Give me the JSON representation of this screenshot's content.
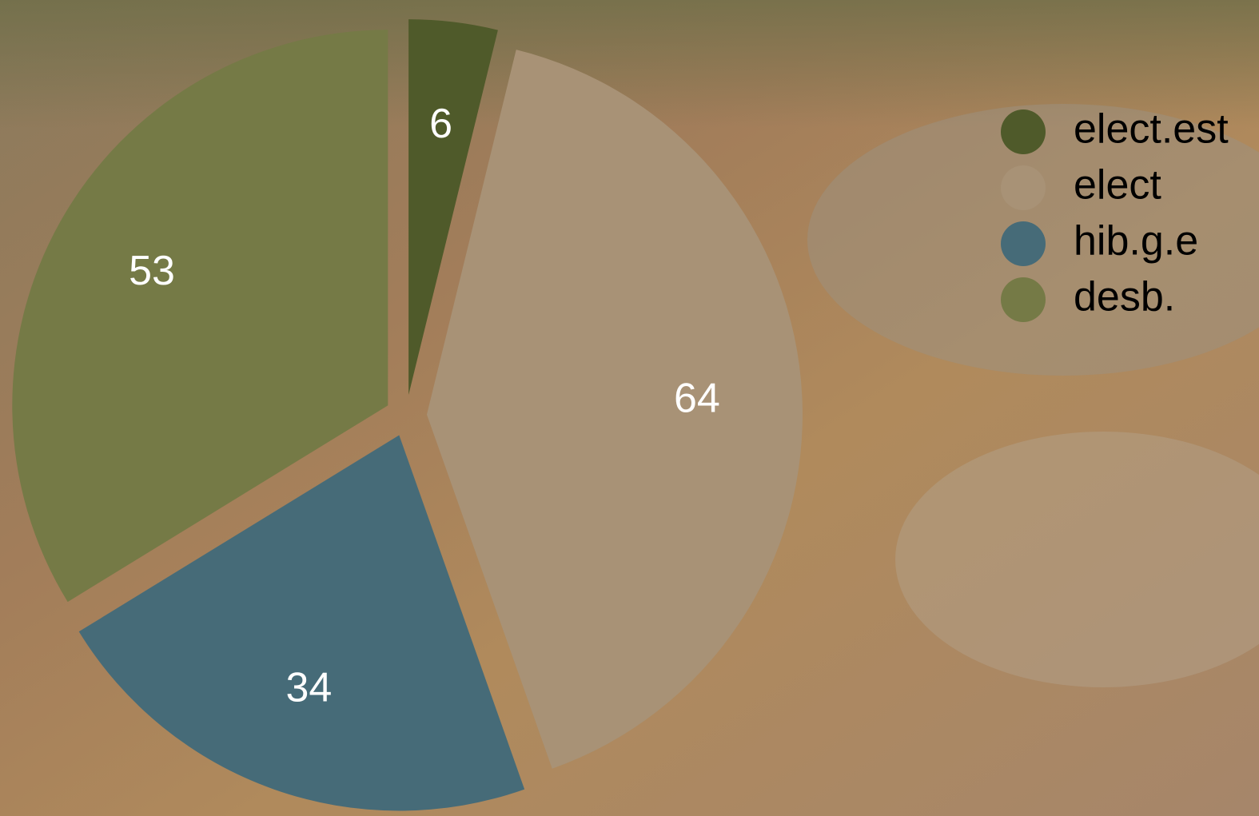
{
  "chart_data": {
    "type": "pie",
    "categories": [
      "elect.est",
      "elect",
      "hib.g.e",
      "desb."
    ],
    "values": [
      6,
      64,
      34,
      53
    ],
    "colors": [
      "#4f5a2a",
      "#a89276",
      "#466b78",
      "#757a46"
    ],
    "legend": "right"
  }
}
